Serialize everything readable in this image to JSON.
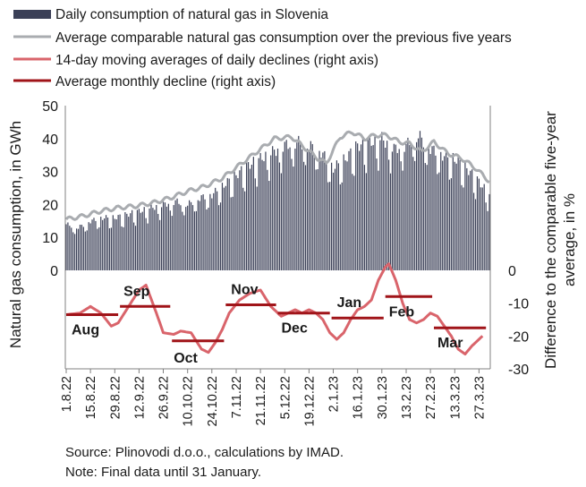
{
  "chart_data": {
    "type": "bar+line",
    "legend": {
      "placement": "top-left",
      "items": [
        {
          "key": "bars",
          "label": "Daily consumption of natural gas in Slovenia",
          "color": "#3b4057",
          "kind": "bar"
        },
        {
          "key": "avg5",
          "label": "Average comparable natural gas consumption over the previous five years",
          "color": "#a9acb0",
          "kind": "line"
        },
        {
          "key": "ma14",
          "label": "14-day moving averages of daily declines (right axis)",
          "color": "#d9646b",
          "kind": "line"
        },
        {
          "key": "monthly",
          "label": "Average monthly decline (right axis)",
          "color": "#a01419",
          "kind": "line"
        }
      ]
    },
    "left_axis": {
      "label": "Natural gas consumption, in GWh",
      "ticks": [
        "50",
        "40",
        "30",
        "20",
        "10",
        "0"
      ],
      "tick_values": [
        50,
        40,
        30,
        20,
        10,
        0
      ],
      "ylim": [
        0,
        50
      ]
    },
    "right_axis": {
      "label": "Difference to the comparable five-year average, in %",
      "label_line1": "Difference to the comparable five-year",
      "label_line2": "average, in %",
      "ticks": [
        "0",
        "-10",
        "-20",
        "-30"
      ],
      "tick_values": [
        0,
        -10,
        -20,
        -30
      ],
      "ylim": [
        -30,
        0
      ]
    },
    "x_ticks": [
      "1.8.22",
      "15.8.22",
      "29.8.22",
      "12.9.22",
      "26.9.22",
      "10.10.22",
      "24.10.22",
      "7.11.22",
      "21.11.22",
      "5.12.22",
      "19.12.22",
      "2.1.23",
      "16.1.23",
      "30.1.23",
      "13.2.23",
      "27.2.23",
      "13.3.23",
      "27.3.23"
    ],
    "x_range": {
      "start": "1.8.22",
      "end": "2.4.23",
      "days": 245
    },
    "bars_anchors": [
      [
        0,
        14
      ],
      [
        7,
        13
      ],
      [
        14,
        15
      ],
      [
        21,
        16
      ],
      [
        28,
        16
      ],
      [
        35,
        17
      ],
      [
        42,
        18
      ],
      [
        49,
        19
      ],
      [
        56,
        20
      ],
      [
        63,
        21
      ],
      [
        70,
        20
      ],
      [
        77,
        22
      ],
      [
        84,
        23
      ],
      [
        91,
        26
      ],
      [
        98,
        29
      ],
      [
        105,
        32
      ],
      [
        112,
        34
      ],
      [
        119,
        36
      ],
      [
        126,
        38
      ],
      [
        133,
        39
      ],
      [
        140,
        38
      ],
      [
        147,
        36
      ],
      [
        154,
        31
      ],
      [
        161,
        34
      ],
      [
        168,
        38
      ],
      [
        175,
        39
      ],
      [
        182,
        40
      ],
      [
        189,
        37
      ],
      [
        196,
        38
      ],
      [
        203,
        41
      ],
      [
        210,
        37
      ],
      [
        217,
        35
      ],
      [
        224,
        34
      ],
      [
        231,
        31
      ],
      [
        238,
        27
      ],
      [
        244,
        23
      ]
    ],
    "avg5_anchors": [
      [
        0,
        15.5
      ],
      [
        10,
        16.5
      ],
      [
        20,
        18
      ],
      [
        30,
        19
      ],
      [
        40,
        19.5
      ],
      [
        50,
        20.5
      ],
      [
        60,
        22
      ],
      [
        70,
        24
      ],
      [
        80,
        25.5
      ],
      [
        90,
        28
      ],
      [
        100,
        32
      ],
      [
        110,
        36
      ],
      [
        120,
        40
      ],
      [
        130,
        40.5
      ],
      [
        138,
        37
      ],
      [
        145,
        34
      ],
      [
        150,
        32.5
      ],
      [
        158,
        40.5
      ],
      [
        165,
        42
      ],
      [
        172,
        40
      ],
      [
        178,
        41
      ],
      [
        185,
        41
      ],
      [
        192,
        39
      ],
      [
        198,
        38.5
      ],
      [
        205,
        36
      ],
      [
        212,
        39
      ],
      [
        220,
        35.5
      ],
      [
        228,
        34
      ],
      [
        236,
        31
      ],
      [
        244,
        27
      ]
    ],
    "ma14_anchors": [
      [
        0,
        -13.5
      ],
      [
        8,
        -13
      ],
      [
        14,
        -11
      ],
      [
        20,
        -13
      ],
      [
        26,
        -17
      ],
      [
        30,
        -16
      ],
      [
        36,
        -11
      ],
      [
        42,
        -6
      ],
      [
        46,
        -4.5
      ],
      [
        52,
        -13
      ],
      [
        56,
        -19
      ],
      [
        62,
        -19.5
      ],
      [
        66,
        -18.5
      ],
      [
        72,
        -19
      ],
      [
        78,
        -24
      ],
      [
        82,
        -25
      ],
      [
        86,
        -22
      ],
      [
        90,
        -18
      ],
      [
        94,
        -13
      ],
      [
        100,
        -9
      ],
      [
        106,
        -7
      ],
      [
        112,
        -6
      ],
      [
        118,
        -11
      ],
      [
        124,
        -14
      ],
      [
        128,
        -13
      ],
      [
        132,
        -12
      ],
      [
        136,
        -13
      ],
      [
        140,
        -12
      ],
      [
        144,
        -13
      ],
      [
        148,
        -15
      ],
      [
        152,
        -19
      ],
      [
        156,
        -21
      ],
      [
        160,
        -19
      ],
      [
        164,
        -15
      ],
      [
        168,
        -12
      ],
      [
        172,
        -11
      ],
      [
        176,
        -9
      ],
      [
        180,
        -3
      ],
      [
        184,
        1
      ],
      [
        186,
        2
      ],
      [
        190,
        -3
      ],
      [
        194,
        -10
      ],
      [
        198,
        -15
      ],
      [
        202,
        -16
      ],
      [
        206,
        -15
      ],
      [
        210,
        -13
      ],
      [
        214,
        -14
      ],
      [
        218,
        -17
      ],
      [
        222,
        -20
      ],
      [
        226,
        -24
      ],
      [
        230,
        -25.5
      ],
      [
        234,
        -23
      ],
      [
        238,
        -21
      ],
      [
        240,
        -20
      ]
    ],
    "monthly_segments": [
      {
        "label": "Aug",
        "start": 0,
        "end": 30,
        "value": -13.5
      },
      {
        "label": "Sep",
        "start": 31,
        "end": 60,
        "value": -11
      },
      {
        "label": "Oct",
        "start": 61,
        "end": 91,
        "value": -21.5
      },
      {
        "label": "Nov",
        "start": 92,
        "end": 121,
        "value": -10.5
      },
      {
        "label": "Dec",
        "start": 122,
        "end": 152,
        "value": -13
      },
      {
        "label": "Jan",
        "start": 153,
        "end": 183,
        "value": -14.5
      },
      {
        "label": "Feb",
        "start": 184,
        "end": 211,
        "value": -8
      },
      {
        "label": "Mar",
        "start": 212,
        "end": 242,
        "value": -17.5
      }
    ],
    "colors": {
      "bars": "#3b4057",
      "avg5": "#a9acb0",
      "ma14": "#d9646b",
      "monthly": "#a01419",
      "axis": "#808080",
      "text": "#1a1a1a"
    },
    "grid": false
  },
  "notes": {
    "source": "Source: Plinovodi d.o.o., calculations by IMAD.",
    "note": "Note: Final data until 31 January."
  }
}
